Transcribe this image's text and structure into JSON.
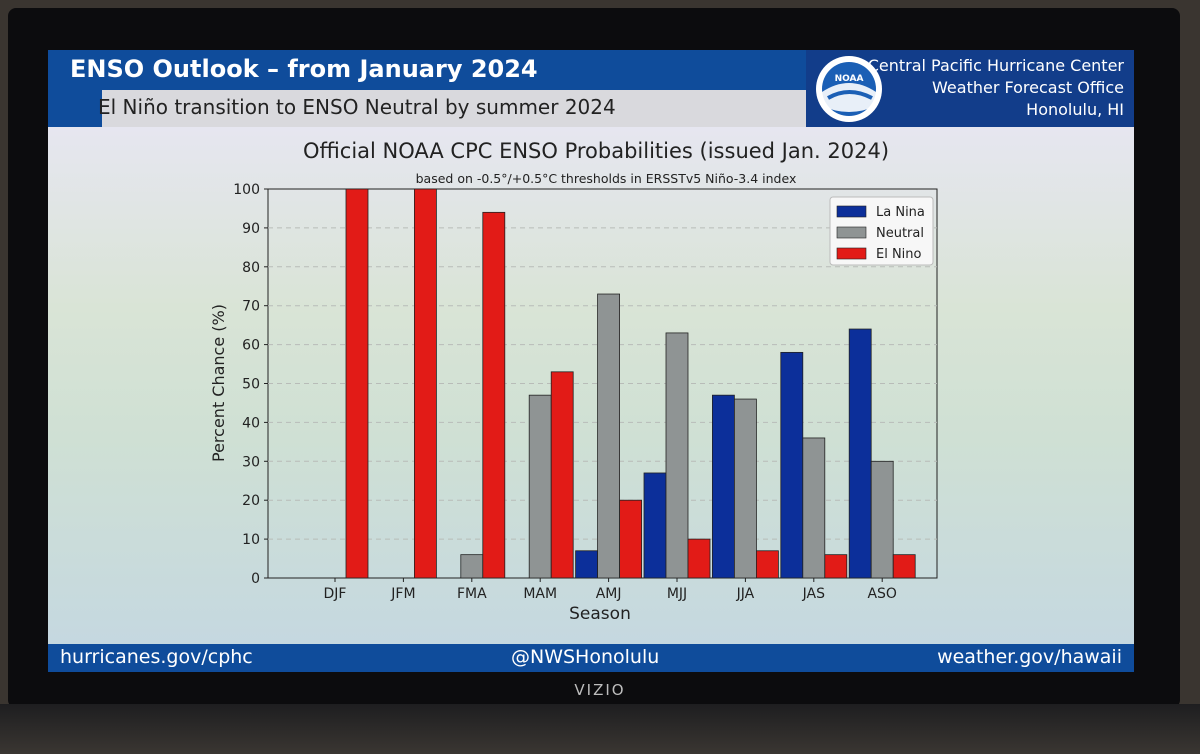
{
  "header": {
    "title": "ENSO Outlook – from January 2024",
    "subtitle": "El Niño transition to ENSO Neutral by summer 2024",
    "office_lines": [
      "Central Pacific Hurricane Center",
      "Weather Forecast Office",
      "Honolulu, HI"
    ],
    "logo_text": "NOAA"
  },
  "footer": {
    "left": "hurricanes.gov/cphc",
    "center": "@NWSHonolulu",
    "right": "weather.gov/hawaii"
  },
  "tv_brand": "VIZIO",
  "chart_data": {
    "type": "bar",
    "title": "Official NOAA CPC ENSO Probabilities (issued Jan. 2024)",
    "subtitle": "based on -0.5°/+0.5°C thresholds in ERSSTv5 Niño-3.4 index",
    "xlabel": "Season",
    "ylabel": "Percent Chance (%)",
    "ylim": [
      0,
      100
    ],
    "yticks": [
      0,
      10,
      20,
      30,
      40,
      50,
      60,
      70,
      80,
      90,
      100
    ],
    "categories": [
      "DJF",
      "JFM",
      "FMA",
      "MAM",
      "AMJ",
      "MJJ",
      "JJA",
      "JAS",
      "ASO"
    ],
    "series": [
      {
        "name": "La Nina",
        "color": "#0c2f9a",
        "values": [
          0,
          0,
          0,
          0,
          7,
          27,
          47,
          58,
          64
        ]
      },
      {
        "name": "Neutral",
        "color": "#8f9494",
        "values": [
          0,
          0,
          6,
          47,
          73,
          63,
          46,
          36,
          30
        ]
      },
      {
        "name": "El Nino",
        "color": "#e21b17",
        "values": [
          100,
          100,
          94,
          53,
          20,
          10,
          7,
          6,
          6
        ]
      }
    ],
    "legend_position": "top-right",
    "grid": "y-dashed"
  }
}
